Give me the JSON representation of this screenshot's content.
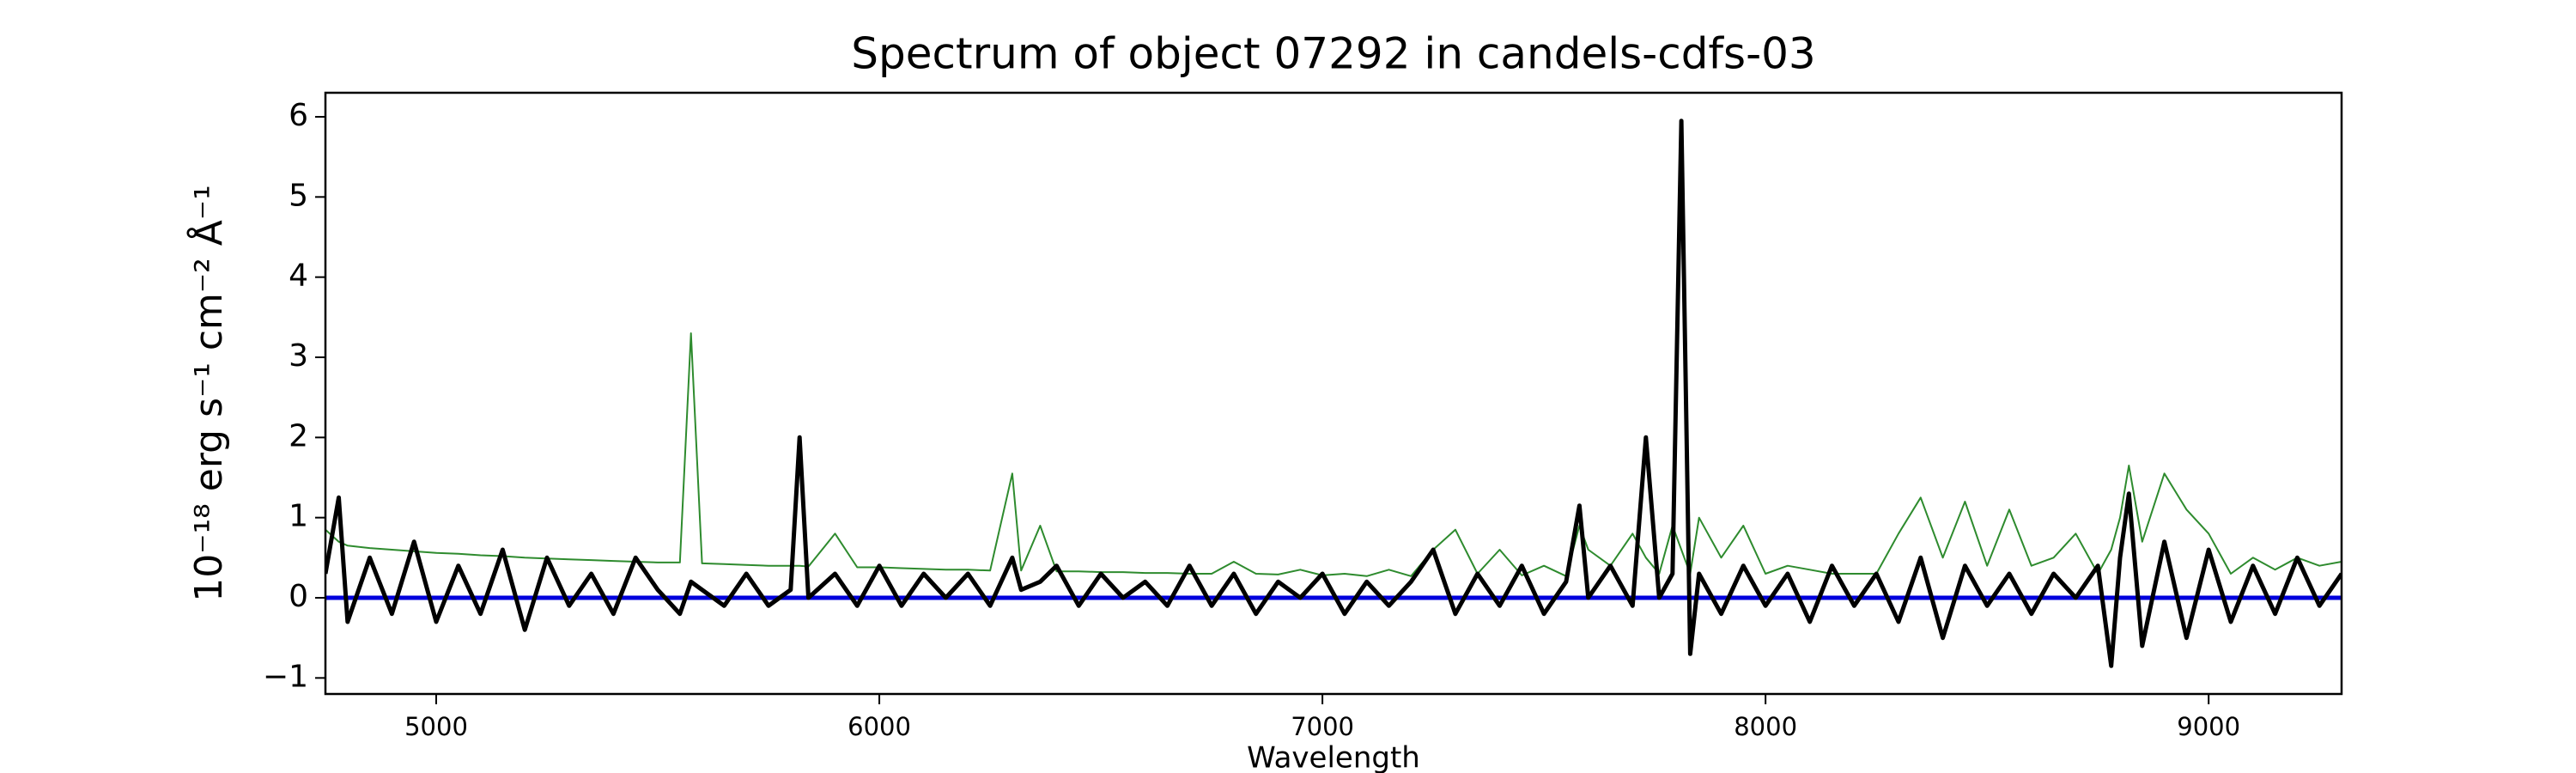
{
  "chart_data": {
    "type": "line",
    "title": "Spectrum of object 07292 in candels-cdfs-03",
    "xlabel": "Wavelength",
    "ylabel": "10⁻¹⁸ erg s⁻¹ cm⁻² Å⁻¹",
    "x": [
      4750,
      4780,
      4800,
      4850,
      4900,
      4950,
      5000,
      5050,
      5100,
      5150,
      5200,
      5250,
      5300,
      5350,
      5400,
      5450,
      5500,
      5550,
      5575,
      5600,
      5650,
      5700,
      5750,
      5800,
      5820,
      5840,
      5900,
      5950,
      6000,
      6050,
      6100,
      6150,
      6200,
      6250,
      6300,
      6320,
      6363,
      6400,
      6450,
      6500,
      6550,
      6600,
      6650,
      6700,
      6750,
      6800,
      6850,
      6900,
      6950,
      7000,
      7050,
      7100,
      7150,
      7200,
      7250,
      7300,
      7350,
      7400,
      7450,
      7500,
      7550,
      7580,
      7600,
      7650,
      7700,
      7730,
      7760,
      7790,
      7810,
      7830,
      7850,
      7900,
      7950,
      8000,
      8050,
      8100,
      8150,
      8200,
      8250,
      8300,
      8350,
      8400,
      8450,
      8500,
      8550,
      8600,
      8650,
      8700,
      8750,
      8780,
      8800,
      8820,
      8850,
      8900,
      8950,
      9000,
      9050,
      9100,
      9150,
      9200,
      9250,
      9300
    ],
    "series": [
      {
        "color": "#2e8b2e",
        "width": 2,
        "values": [
          0.85,
          0.7,
          0.65,
          0.62,
          0.6,
          0.58,
          0.56,
          0.55,
          0.53,
          0.52,
          0.5,
          0.49,
          0.48,
          0.47,
          0.46,
          0.45,
          0.44,
          0.44,
          3.3,
          0.43,
          0.42,
          0.41,
          0.4,
          0.4,
          0.4,
          0.39,
          0.8,
          0.38,
          0.38,
          0.37,
          0.36,
          0.35,
          0.35,
          0.34,
          1.55,
          0.34,
          0.9,
          0.33,
          0.33,
          0.32,
          0.32,
          0.31,
          0.31,
          0.3,
          0.3,
          0.45,
          0.3,
          0.29,
          0.35,
          0.28,
          0.3,
          0.27,
          0.35,
          0.27,
          0.6,
          0.85,
          0.3,
          0.6,
          0.28,
          0.4,
          0.27,
          0.9,
          0.6,
          0.4,
          0.8,
          0.5,
          0.3,
          0.9,
          0.6,
          0.3,
          1.0,
          0.5,
          0.9,
          0.3,
          0.4,
          0.35,
          0.3,
          0.3,
          0.3,
          0.8,
          1.25,
          0.5,
          1.2,
          0.4,
          1.1,
          0.4,
          0.5,
          0.8,
          0.3,
          0.6,
          1.0,
          1.65,
          0.7,
          1.55,
          1.1,
          0.8,
          0.3,
          0.5,
          0.35,
          0.5,
          0.4,
          0.45
        ]
      },
      {
        "color": "#0000dd",
        "width": 5,
        "values": [
          0,
          0,
          0,
          0,
          0,
          0,
          0,
          0,
          0,
          0,
          0,
          0,
          0,
          0,
          0,
          0,
          0,
          0,
          0,
          0,
          0,
          0,
          0,
          0,
          0,
          0,
          0,
          0,
          0,
          0,
          0,
          0,
          0,
          0,
          0,
          0,
          0,
          0,
          0,
          0,
          0,
          0,
          0,
          0,
          0,
          0,
          0,
          0,
          0,
          0,
          0,
          0,
          0,
          0,
          0,
          0,
          0,
          0,
          0,
          0,
          0,
          0,
          0,
          0,
          0,
          0,
          0,
          0,
          0,
          0,
          0,
          0,
          0,
          0,
          0,
          0,
          0,
          0,
          0,
          0,
          0,
          0,
          0,
          0,
          0,
          0,
          0,
          0,
          0,
          0,
          0,
          0,
          0,
          0,
          0,
          0,
          0,
          0,
          0,
          0,
          0,
          0
        ]
      },
      {
        "color": "#000000",
        "width": 5,
        "values": [
          0.3,
          1.25,
          -0.3,
          0.5,
          -0.2,
          0.7,
          -0.3,
          0.4,
          -0.2,
          0.6,
          -0.4,
          0.5,
          -0.1,
          0.3,
          -0.2,
          0.5,
          0.1,
          -0.2,
          0.2,
          0.1,
          -0.1,
          0.3,
          -0.1,
          0.1,
          2.0,
          0.0,
          0.3,
          -0.1,
          0.4,
          -0.1,
          0.3,
          0.0,
          0.3,
          -0.1,
          0.5,
          0.1,
          0.2,
          0.4,
          -0.1,
          0.3,
          0.0,
          0.2,
          -0.1,
          0.4,
          -0.1,
          0.3,
          -0.2,
          0.2,
          0.0,
          0.3,
          -0.2,
          0.2,
          -0.1,
          0.2,
          0.6,
          -0.2,
          0.3,
          -0.1,
          0.4,
          -0.2,
          0.2,
          1.15,
          0.0,
          0.4,
          -0.1,
          2.0,
          0.0,
          0.3,
          5.95,
          -0.7,
          0.3,
          -0.2,
          0.4,
          -0.1,
          0.3,
          -0.3,
          0.4,
          -0.1,
          0.3,
          -0.3,
          0.5,
          -0.5,
          0.4,
          -0.1,
          0.3,
          -0.2,
          0.3,
          0.0,
          0.4,
          -0.85,
          0.5,
          1.3,
          -0.6,
          0.7,
          -0.5,
          0.6,
          -0.3,
          0.4,
          -0.2,
          0.5,
          -0.1,
          0.3
        ]
      }
    ],
    "xlim": [
      4750,
      9300
    ],
    "xticks": [
      5000,
      6000,
      7000,
      8000,
      9000
    ],
    "ylim": [
      -1.2,
      6.3
    ],
    "yticks": [
      {
        "value": -1,
        "label": "−1"
      },
      0,
      1,
      2,
      3,
      4,
      5,
      6
    ],
    "grid": false
  }
}
